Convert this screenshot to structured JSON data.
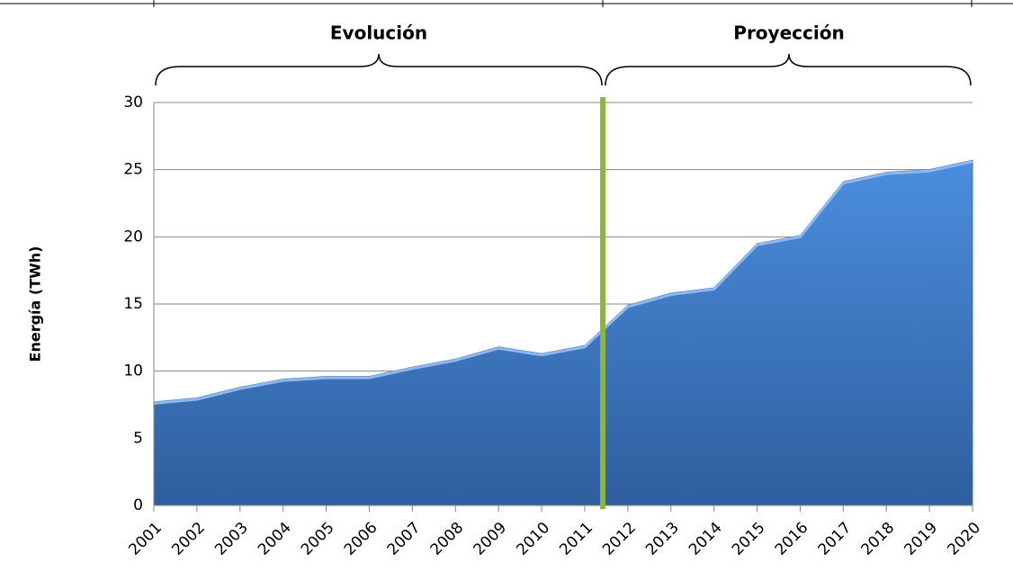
{
  "chart_data": {
    "type": "area",
    "ylabel": "Energía (TWh)",
    "annotations": [
      "Evolución",
      "Proyección"
    ],
    "categories": [
      "2001",
      "2002",
      "2003",
      "2004",
      "2005",
      "2006",
      "2007",
      "2008",
      "2009",
      "2010",
      "2011",
      "2012",
      "2013",
      "2014",
      "2015",
      "2016",
      "2017",
      "2018",
      "2019",
      "2020"
    ],
    "values": [
      7.7,
      8.0,
      8.8,
      9.4,
      9.6,
      9.6,
      10.3,
      10.9,
      11.8,
      11.3,
      11.9,
      14.9,
      15.8,
      16.2,
      19.5,
      20.1,
      24.1,
      24.8,
      25.0,
      25.7
    ],
    "color": "#3d72b8",
    "ylim": [
      0,
      30
    ],
    "yticks": [
      0,
      5,
      10,
      15,
      20,
      25,
      30
    ],
    "grid": true
  }
}
